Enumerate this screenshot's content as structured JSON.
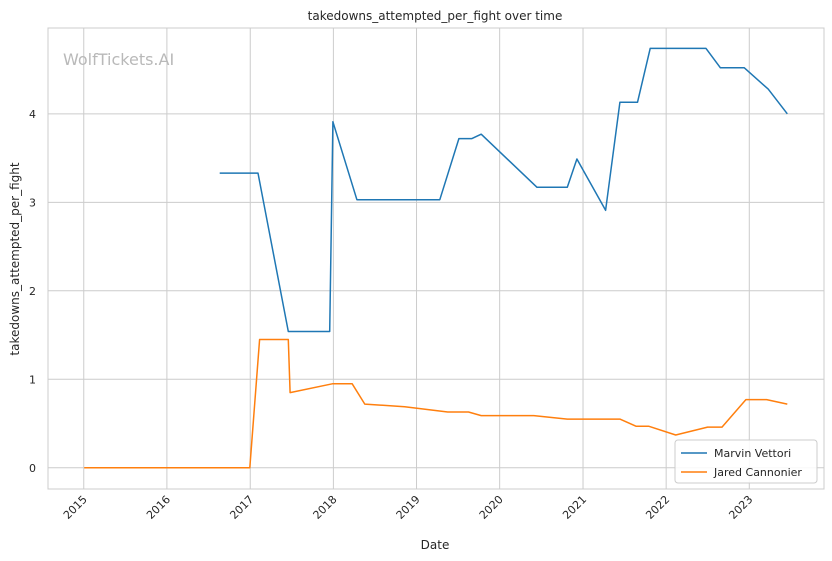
{
  "chart_data": {
    "type": "line",
    "title": "takedowns_attempted_per_fight over time",
    "xlabel": "Date",
    "ylabel": "takedowns_attempted_per_fight",
    "watermark": "WolfTickets.AI",
    "x_ticks": [
      "2015",
      "2016",
      "2017",
      "2018",
      "2019",
      "2020",
      "2021",
      "2022",
      "2023"
    ],
    "y_ticks": [
      "0",
      "1",
      "2",
      "3",
      "4"
    ],
    "xlim": [
      "2014-07-28",
      "2023-11-25"
    ],
    "ylim": [
      -0.24,
      4.97
    ],
    "grid": true,
    "legend_position": "lower-right",
    "series": [
      {
        "name": "Marvin Vettori",
        "color": "#1f77b4",
        "points": [
          [
            "2016-08-20",
            3.33
          ],
          [
            "2017-02-04",
            3.33
          ],
          [
            "2017-06-17",
            1.54
          ],
          [
            "2017-12-16",
            1.54
          ],
          [
            "2017-12-30",
            3.91
          ],
          [
            "2018-04-14",
            3.03
          ],
          [
            "2019-04-13",
            3.03
          ],
          [
            "2019-07-06",
            3.72
          ],
          [
            "2019-09-01",
            3.72
          ],
          [
            "2019-10-12",
            3.77
          ],
          [
            "2020-06-13",
            3.17
          ],
          [
            "2020-10-24",
            3.17
          ],
          [
            "2020-12-05",
            3.49
          ],
          [
            "2021-04-10",
            2.91
          ],
          [
            "2021-06-12",
            4.13
          ],
          [
            "2021-08-28",
            4.13
          ],
          [
            "2021-10-23",
            4.74
          ],
          [
            "2022-06-25",
            4.74
          ],
          [
            "2022-08-27",
            4.52
          ],
          [
            "2022-12-10",
            4.52
          ],
          [
            "2023-03-25",
            4.28
          ],
          [
            "2023-06-17",
            4.0
          ]
        ]
      },
      {
        "name": "Jared Cannonier",
        "color": "#ff7f0e",
        "points": [
          [
            "2015-01-03",
            0.0
          ],
          [
            "2016-12-30",
            0.0
          ],
          [
            "2017-02-11",
            1.45
          ],
          [
            "2017-06-17",
            1.45
          ],
          [
            "2017-06-25",
            0.85
          ],
          [
            "2017-12-30",
            0.95
          ],
          [
            "2018-03-24",
            0.95
          ],
          [
            "2018-05-19",
            0.72
          ],
          [
            "2018-11-10",
            0.69
          ],
          [
            "2019-05-18",
            0.63
          ],
          [
            "2019-08-17",
            0.63
          ],
          [
            "2019-10-12",
            0.59
          ],
          [
            "2020-05-30",
            0.59
          ],
          [
            "2020-10-24",
            0.55
          ],
          [
            "2021-06-12",
            0.55
          ],
          [
            "2021-08-21",
            0.47
          ],
          [
            "2021-10-16",
            0.47
          ],
          [
            "2022-02-12",
            0.37
          ],
          [
            "2022-07-02",
            0.46
          ],
          [
            "2022-09-03",
            0.46
          ],
          [
            "2022-12-17",
            0.77
          ],
          [
            "2023-03-18",
            0.77
          ],
          [
            "2023-06-17",
            0.72
          ]
        ]
      }
    ]
  }
}
